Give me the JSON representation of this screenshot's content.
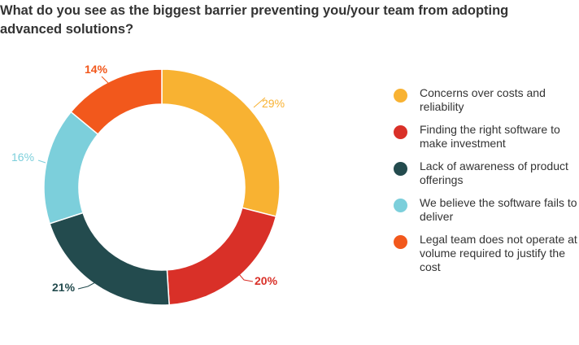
{
  "chart_data": {
    "type": "pie",
    "title": "What do you see as the biggest barrier preventing you/your team from adopting advanced solutions?",
    "categories": [
      "Concerns over costs and reliability",
      "Finding the right software to make investment",
      "Lack of awareness of product offerings",
      "We believe the software fails to deliver",
      "Legal team does not operate at volume required to justify the cost"
    ],
    "values": [
      29,
      20,
      21,
      16,
      14
    ],
    "value_labels": [
      "29%",
      "20%",
      "21%",
      "16%",
      "14%"
    ],
    "colors": [
      "#f8b232",
      "#d93028",
      "#234b4e",
      "#7ccfdb",
      "#f2581c"
    ],
    "donut": true,
    "legend_position": "right"
  }
}
